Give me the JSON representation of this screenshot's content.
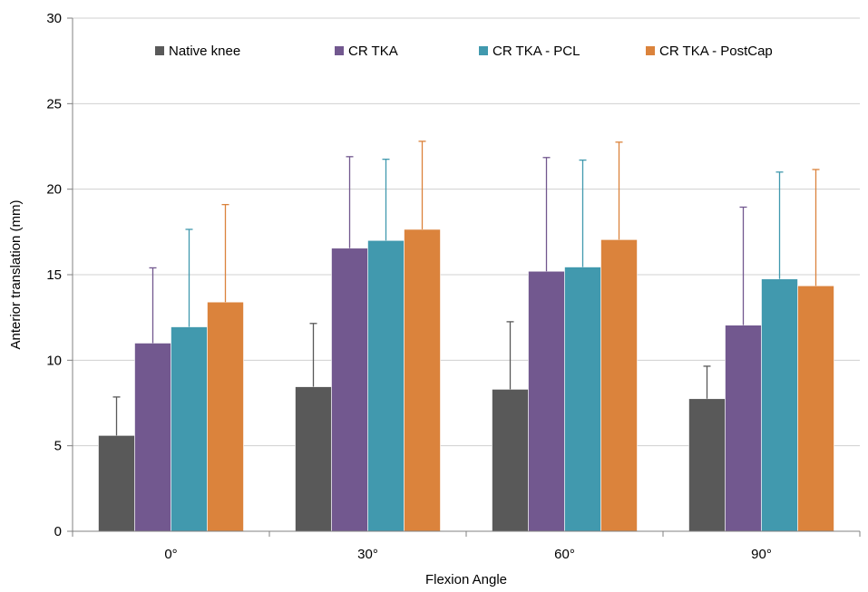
{
  "chart_data": {
    "type": "bar",
    "title": "",
    "xlabel": "Flexion Angle",
    "ylabel": "Anterior translation (mm)",
    "categories": [
      "0°",
      "30°",
      "60°",
      "90°"
    ],
    "ylim": [
      0,
      30
    ],
    "yticks": [
      0,
      5,
      10,
      15,
      20,
      25,
      30
    ],
    "grid": true,
    "legend_position": "top",
    "series": [
      {
        "name": "Native knee",
        "color": "#595959",
        "values": [
          5.6,
          8.45,
          8.3,
          7.75
        ],
        "error_upper": [
          7.85,
          12.15,
          12.25,
          9.65
        ]
      },
      {
        "name": "CR TKA",
        "color": "#72588F",
        "values": [
          11.0,
          16.55,
          15.2,
          12.05
        ],
        "error_upper": [
          15.4,
          21.9,
          21.85,
          18.95
        ]
      },
      {
        "name": "CR TKA - PCL",
        "color": "#4199AE",
        "values": [
          11.95,
          17.0,
          15.45,
          14.75
        ],
        "error_upper": [
          17.65,
          21.75,
          21.7,
          21.0
        ]
      },
      {
        "name": "CR TKA - PostCap",
        "color": "#DB833C",
        "values": [
          13.4,
          17.65,
          17.05,
          14.35
        ],
        "error_upper": [
          19.1,
          22.8,
          22.75,
          21.15
        ]
      }
    ]
  }
}
